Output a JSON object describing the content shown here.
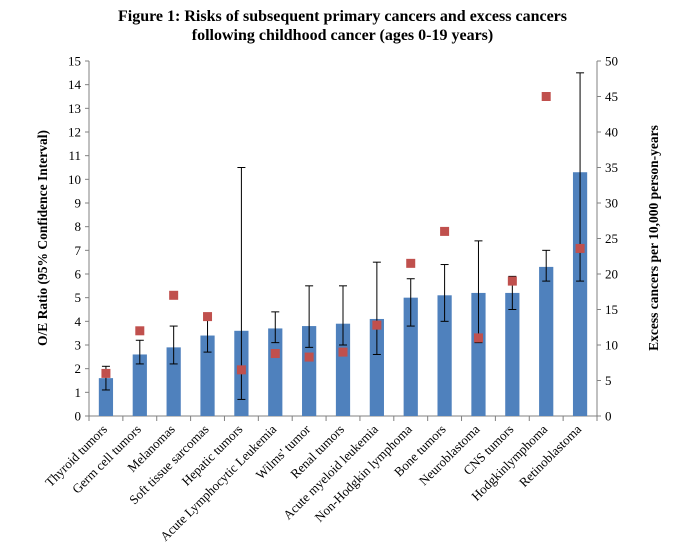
{
  "title_line1": "Figure 1: Risks of subsequent primary cancers and excess cancers",
  "title_line2": "following childhood cancer (ages 0-19 years)",
  "chart_data": {
    "type": "bar",
    "title": "Figure 1: Risks of subsequent primary cancers and excess cancers following childhood cancer (ages 0-19 years)",
    "ylabel": "O/E Ratio (95% Confidence Interval)",
    "y2label": "Excess cancers per 10,000 person-years",
    "ylim": [
      0,
      15
    ],
    "y2lim": [
      0,
      50
    ],
    "yticks": [
      "0",
      "1",
      "2",
      "3",
      "4",
      "5",
      "6",
      "7",
      "8",
      "9",
      "10",
      "11",
      "12",
      "13",
      "14",
      "15"
    ],
    "y2ticks": [
      "0",
      "5",
      "10",
      "15",
      "20",
      "25",
      "30",
      "35",
      "40",
      "45",
      "50"
    ],
    "categories": [
      "Thyroid tumors",
      "Germ cell tumors",
      "Melanomas",
      "Soft tissue sarcomas",
      "Hepatic tumors",
      "Acute Lymphocytic Leukemia",
      "Wilms' tumor",
      "Renal tumors",
      "Acute myeloid leukemia",
      "Non-Hodgkin lymphoma",
      "Bone tumors",
      "Neuroblastoma",
      "CNS tumors",
      "Hodgkinlymphoma",
      "Retinoblastoma"
    ],
    "oe_ratio": [
      1.6,
      2.6,
      2.9,
      3.4,
      3.6,
      3.7,
      3.8,
      3.9,
      4.1,
      5.0,
      5.1,
      5.2,
      5.2,
      6.3,
      10.3
    ],
    "ci_low": [
      1.1,
      2.2,
      2.2,
      2.7,
      0.7,
      3.1,
      2.9,
      3.0,
      2.6,
      3.8,
      4.0,
      3.1,
      4.5,
      5.7,
      5.7
    ],
    "ci_high": [
      2.1,
      3.2,
      3.8,
      4.2,
      10.5,
      4.4,
      5.5,
      5.5,
      6.5,
      5.8,
      6.4,
      7.4,
      5.9,
      7.0,
      14.5
    ],
    "excess_cancers": [
      6.0,
      12.0,
      17.0,
      14.0,
      6.5,
      8.8,
      8.3,
      9.0,
      12.8,
      21.5,
      26.0,
      11.0,
      19.0,
      45.0,
      23.6
    ],
    "grid": false,
    "colors": {
      "bar": "#4F81BD",
      "marker": "#C0504D",
      "errorbar": "#000000",
      "axis": "#808080"
    }
  }
}
